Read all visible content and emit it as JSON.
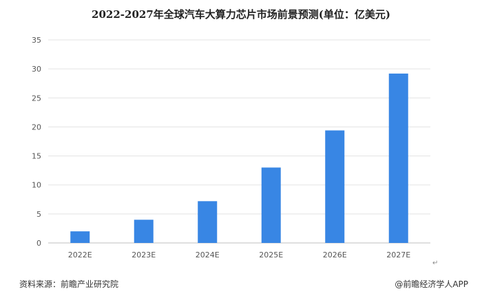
{
  "chart_data": {
    "type": "bar",
    "title": "2022-2027年全球汽车大算力芯片市场前景预测(单位：亿美元)",
    "categories": [
      "2022E",
      "2023E",
      "2024E",
      "2025E",
      "2026E",
      "2027E"
    ],
    "values": [
      2.0,
      4.0,
      7.2,
      13.0,
      19.4,
      29.2
    ],
    "ylim": [
      0,
      35
    ],
    "yticks": [
      0,
      5,
      10,
      15,
      20,
      25,
      30,
      35
    ],
    "grid": true,
    "bar_color": "#3886e4"
  },
  "footer": {
    "source": "资料来源：前瞻产业研究院",
    "brand": "@前瞻经济学人APP",
    "return_mark": "↵"
  }
}
